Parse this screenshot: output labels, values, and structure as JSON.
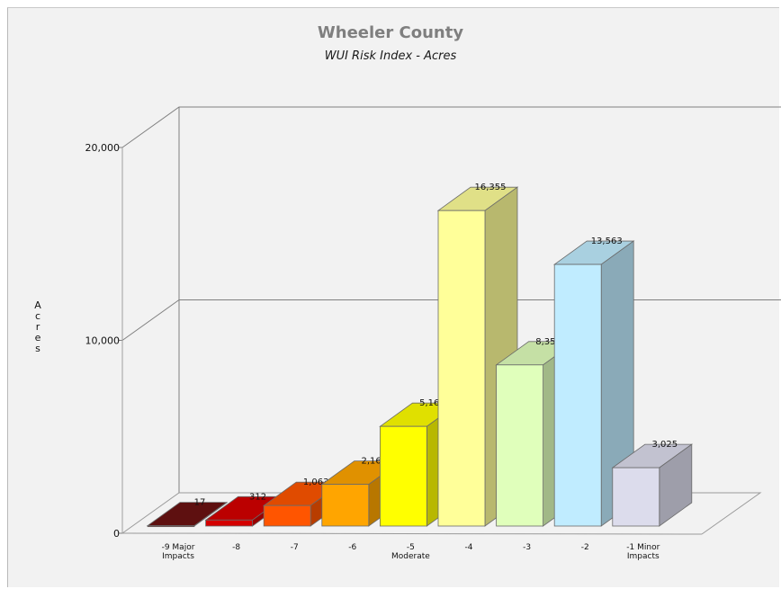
{
  "chart_data": {
    "type": "bar",
    "title": "Wheeler County",
    "subtitle": "WUI Risk Index - Acres",
    "ylabel": "Acres",
    "xlabel": "",
    "ylim": [
      0,
      20000
    ],
    "yticks": [
      "0",
      "10,000",
      "20,000"
    ],
    "categories": [
      [
        "-9 Major",
        "Impacts"
      ],
      [
        "-8"
      ],
      [
        "-7"
      ],
      [
        "-6"
      ],
      [
        "-5",
        "Moderate"
      ],
      [
        "-4"
      ],
      [
        "-3"
      ],
      [
        "-2"
      ],
      [
        "-1 Minor",
        "Impacts"
      ]
    ],
    "values": [
      17,
      312,
      1063,
      2161,
      5166,
      16355,
      8354,
      13563,
      3025
    ],
    "data_labels": [
      "17",
      "312",
      "1,063",
      "2,161",
      "5,166",
      "16,355",
      "8,354",
      "13,563",
      "3,025"
    ],
    "colors": [
      "#6b1212",
      "#d40000",
      "#ff5500",
      "#ffa500",
      "#ffff00",
      "#ffff99",
      "#e0ffbb",
      "#c0ecff",
      "#dcdcec"
    ],
    "grid": true,
    "legend": "none"
  }
}
